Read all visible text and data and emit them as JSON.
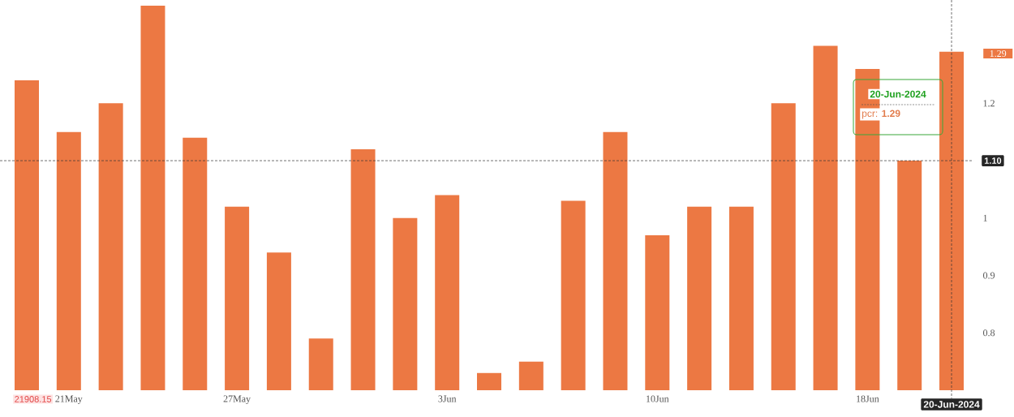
{
  "chart_data": {
    "type": "bar",
    "categories": [
      null,
      "21May",
      null,
      null,
      null,
      "27May",
      null,
      null,
      null,
      null,
      "3Jun",
      null,
      null,
      null,
      null,
      "10Jun",
      null,
      null,
      null,
      null,
      "18Jun",
      null,
      "20-Jun-2024"
    ],
    "values": [
      1.24,
      1.15,
      1.2,
      1.37,
      1.14,
      1.02,
      0.94,
      0.79,
      1.12,
      1.0,
      1.04,
      0.73,
      0.75,
      1.03,
      1.15,
      0.97,
      1.02,
      1.02,
      1.2,
      1.3,
      1.26,
      1.1,
      1.29
    ],
    "color": "#ec7843",
    "ylim": [
      0.7,
      1.38
    ],
    "yticks": [
      0.8,
      0.9,
      1,
      1.2
    ],
    "ref_lines": [
      {
        "axis": "y",
        "value": 1.1,
        "label": "1.10",
        "line_style": "dashed",
        "color": "#333333"
      },
      {
        "axis": "x",
        "value": "20-Jun-2024",
        "line_style": "dashed",
        "color": "#333333"
      }
    ],
    "annotations": [
      "21908.15",
      "20-Jun-2024",
      "pcr: **1.29**",
      "1.29"
    ]
  }
}
